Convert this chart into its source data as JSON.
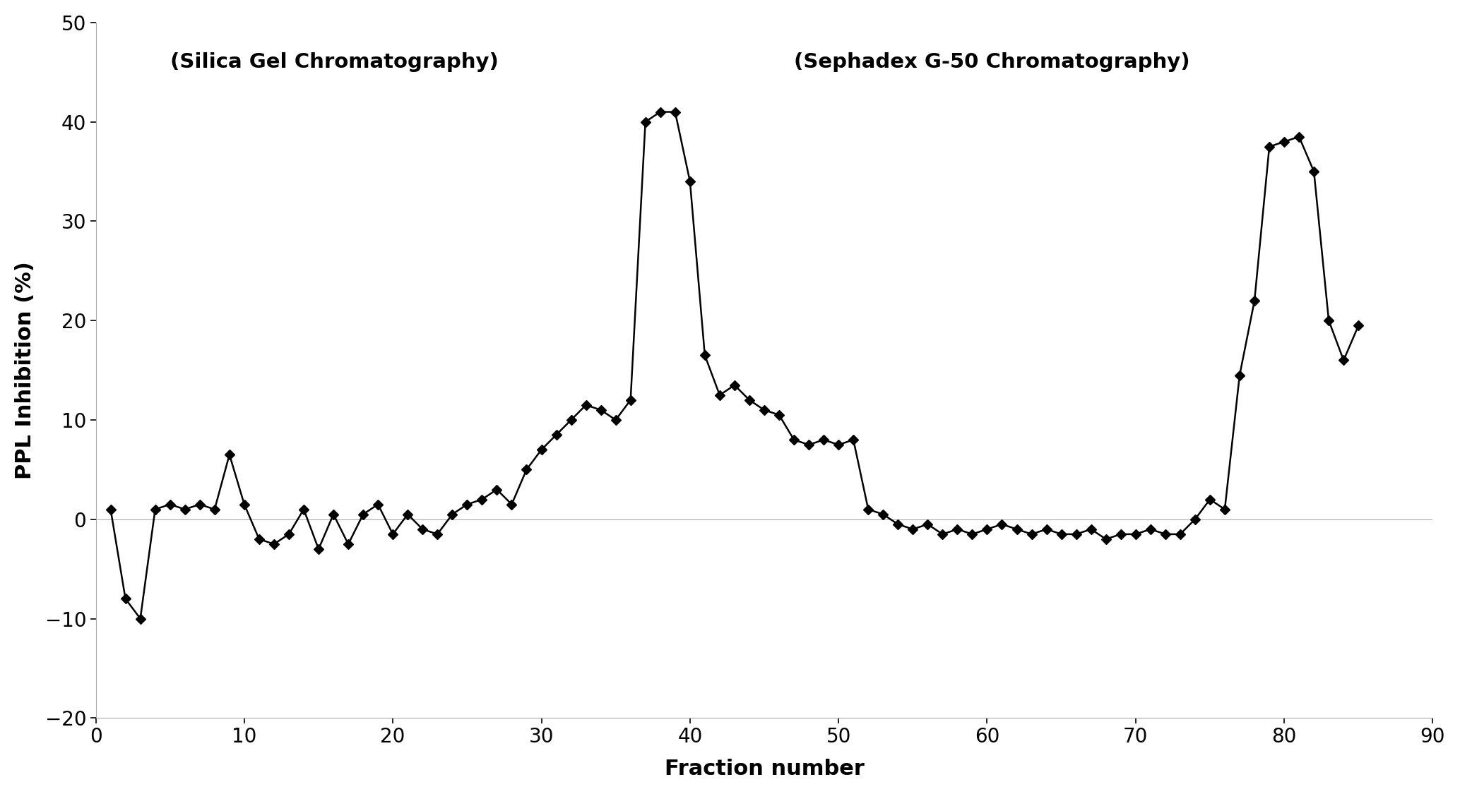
{
  "x": [
    1,
    2,
    3,
    4,
    5,
    6,
    7,
    8,
    9,
    10,
    11,
    12,
    13,
    14,
    15,
    16,
    17,
    18,
    19,
    20,
    21,
    22,
    23,
    24,
    25,
    26,
    27,
    28,
    29,
    30,
    31,
    32,
    33,
    34,
    35,
    36,
    37,
    38,
    39,
    40,
    41,
    42,
    43,
    44,
    45,
    46,
    47,
    48,
    49,
    50,
    51,
    52,
    53,
    54,
    55,
    56,
    57,
    58,
    59,
    60,
    61,
    62,
    63,
    64,
    65,
    66,
    67,
    68,
    69,
    70,
    71,
    72,
    73,
    74,
    75,
    76,
    77,
    78,
    79,
    80,
    81,
    82,
    83,
    84,
    85
  ],
  "y": [
    1.0,
    -8.0,
    -10.0,
    1.0,
    1.5,
    1.0,
    1.5,
    1.0,
    6.5,
    1.5,
    -2.0,
    -2.5,
    -1.5,
    1.0,
    -3.0,
    0.5,
    -2.5,
    0.5,
    1.5,
    -1.5,
    0.5,
    -1.0,
    -1.5,
    0.5,
    1.5,
    2.0,
    3.0,
    1.5,
    5.0,
    7.0,
    8.5,
    10.0,
    11.5,
    11.0,
    10.0,
    12.0,
    40.0,
    41.0,
    41.0,
    34.0,
    16.5,
    12.5,
    13.5,
    12.0,
    11.0,
    10.5,
    8.0,
    7.5,
    8.0,
    7.5,
    8.0,
    1.0,
    0.5,
    -0.5,
    -1.0,
    -0.5,
    -1.5,
    -1.0,
    -1.5,
    -1.0,
    -0.5,
    -1.0,
    -1.5,
    -1.0,
    -1.5,
    -1.5,
    -1.0,
    -2.0,
    -1.5,
    -1.5,
    -1.0,
    -1.5,
    -1.5,
    0.0,
    2.0,
    1.0,
    14.5,
    22.0,
    37.5,
    38.0,
    38.5,
    35.0,
    20.0,
    16.0,
    19.5
  ],
  "xlabel": "Fraction number",
  "ylabel": "PPL Inhibition (%)",
  "label_silica": "(Silica Gel Chromatography)",
  "label_sephadex": "(Sephadex G-50 Chromatography)",
  "label_silica_xdata": 5,
  "label_silica_ydata": 47,
  "label_sephadex_xdata": 47,
  "label_sephadex_ydata": 47,
  "xlim": [
    0,
    90
  ],
  "ylim": [
    -20,
    50
  ],
  "xticks": [
    0,
    10,
    20,
    30,
    40,
    50,
    60,
    70,
    80,
    90
  ],
  "yticks": [
    -20,
    -10,
    0,
    10,
    20,
    30,
    40,
    50
  ],
  "line_color": "#000000",
  "marker": "D",
  "markersize": 7,
  "linewidth": 1.8,
  "background_color": "#ffffff",
  "axis_label_fontsize": 22,
  "tick_fontsize": 20,
  "annotation_fontsize": 21
}
